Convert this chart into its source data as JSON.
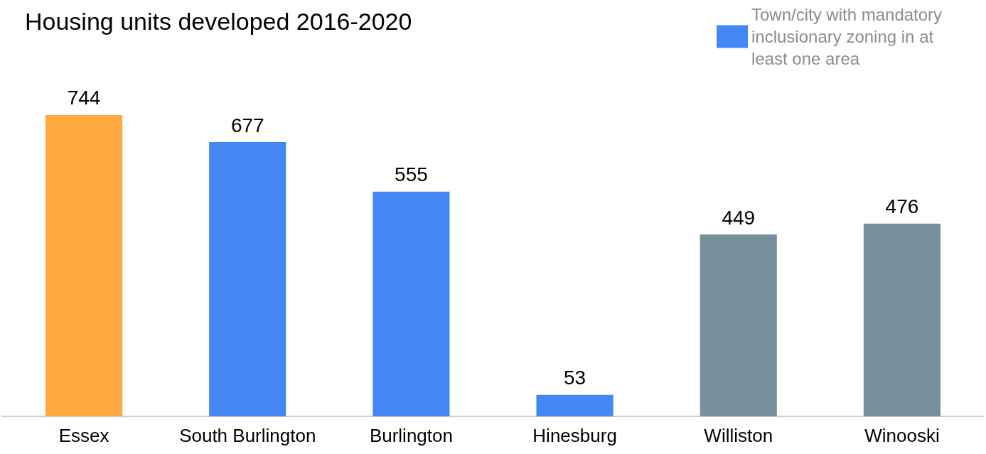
{
  "chart_data": {
    "type": "bar",
    "title": "Housing units developed 2016-2020",
    "categories": [
      "Essex",
      "South Burlington",
      "Burlington",
      "Hinesburg",
      "Williston",
      "Winooski"
    ],
    "series": [
      {
        "colors": [
          "#ffa940",
          null,
          null,
          null,
          "#78909c",
          "#78909c"
        ],
        "values": [
          744,
          null,
          null,
          null,
          449,
          476
        ]
      },
      {
        "name": "Town/city with mandatory inclusionary zoning in at least one area",
        "color": "#4487f4",
        "values": [
          null,
          677,
          555,
          53,
          null,
          null
        ]
      }
    ],
    "data_labels": true,
    "legend": "top right",
    "grid": false
  }
}
